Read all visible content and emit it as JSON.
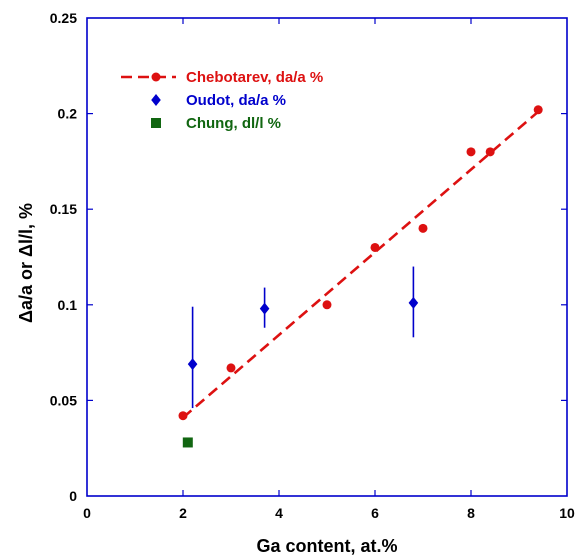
{
  "chart_data": {
    "type": "scatter",
    "xlabel": "Ga content, at.%",
    "ylabel": "Δa/a  or Δl/l, %",
    "xlim": [
      0,
      10
    ],
    "ylim": [
      0,
      0.25
    ],
    "x_ticks": [
      "0",
      "2",
      "4",
      "6",
      "8",
      "10"
    ],
    "y_ticks": [
      "0",
      "0.05",
      "0.1",
      "0.15",
      "0.2",
      "0.25"
    ],
    "grid": false,
    "legend_position": "top-left",
    "series": [
      {
        "name": "Chebotarev, da/a %",
        "color": "#dd1111",
        "marker": "circle",
        "line": "dashed linear fit",
        "points": [
          {
            "x": 2.0,
            "y": 0.042
          },
          {
            "x": 3.0,
            "y": 0.067
          },
          {
            "x": 5.0,
            "y": 0.1
          },
          {
            "x": 6.0,
            "y": 0.13
          },
          {
            "x": 7.0,
            "y": 0.14
          },
          {
            "x": 8.0,
            "y": 0.18
          },
          {
            "x": 8.4,
            "y": 0.18
          },
          {
            "x": 9.4,
            "y": 0.202
          }
        ],
        "fit_line": [
          {
            "x": 2.0,
            "y": 0.041
          },
          {
            "x": 9.4,
            "y": 0.201
          }
        ]
      },
      {
        "name": "Oudot, da/a %",
        "color": "#0000cc",
        "marker": "diamond",
        "points": [
          {
            "x": 2.2,
            "y": 0.069,
            "err_low": 0.046,
            "err_high": 0.099
          },
          {
            "x": 3.7,
            "y": 0.098,
            "err_low": 0.088,
            "err_high": 0.109
          },
          {
            "x": 6.8,
            "y": 0.101,
            "err_low": 0.083,
            "err_high": 0.12
          }
        ]
      },
      {
        "name": "Chung, dl/l %",
        "color": "#116611",
        "marker": "square",
        "points": [
          {
            "x": 2.1,
            "y": 0.028
          }
        ]
      }
    ]
  }
}
